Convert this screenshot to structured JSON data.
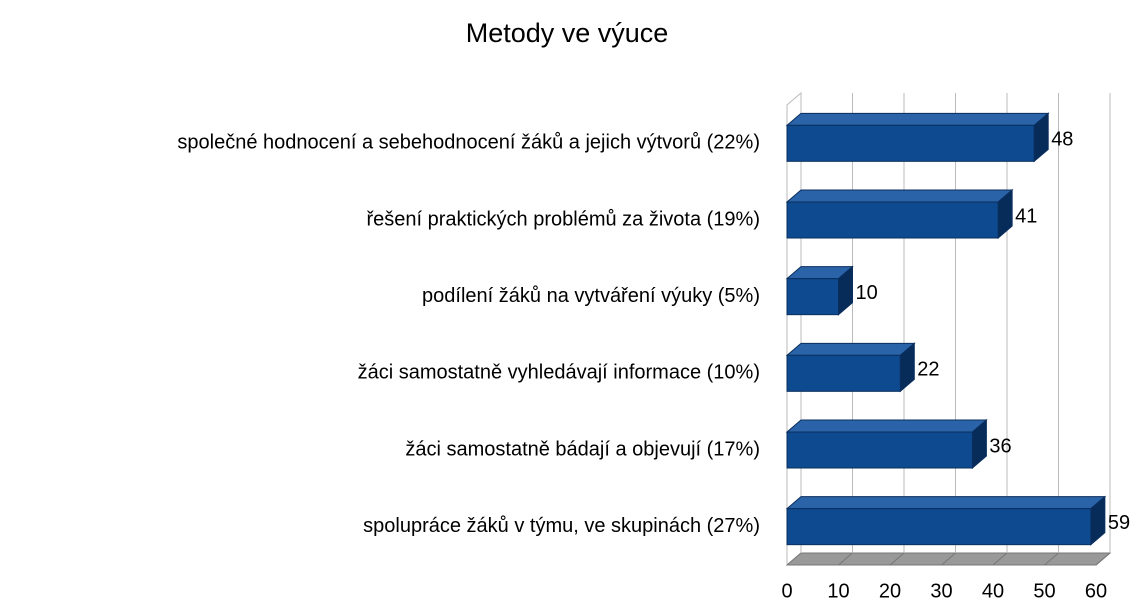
{
  "chart_data": {
    "type": "bar3d",
    "orientation": "horizontal",
    "title": "Metody ve výuce",
    "categories": [
      "společné hodnocení a sebehodnocení žáků a jejich výtvorů (22%)",
      "řešení praktických problémů za života (19%)",
      "podílení žáků na vytváření výuky (5%)",
      "žáci samostatně vyhledávají informace (10%)",
      "žáci samostatně bádají a objevují (17%)",
      "spolupráce žáků v týmu, ve skupinách (27%)"
    ],
    "values": [
      48,
      41,
      10,
      22,
      36,
      59
    ],
    "color": "#0e4a8f",
    "xlim": [
      0,
      60
    ],
    "xticks": [
      0,
      10,
      20,
      30,
      40,
      50,
      60
    ],
    "grid": true
  }
}
